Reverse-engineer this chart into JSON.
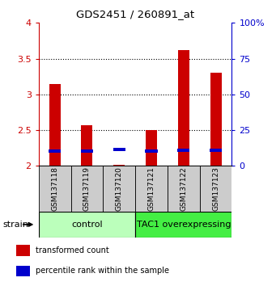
{
  "title": "GDS2451 / 260891_at",
  "samples": [
    "GSM137118",
    "GSM137119",
    "GSM137120",
    "GSM137121",
    "GSM137122",
    "GSM137123"
  ],
  "transformed_counts": [
    3.15,
    2.57,
    2.02,
    2.5,
    3.62,
    3.3
  ],
  "percentile_ranks": [
    10.5,
    10.5,
    11.5,
    10.5,
    11.0,
    11.0
  ],
  "bar_base": 2.0,
  "ylim": [
    2.0,
    4.0
  ],
  "yticks_left": [
    2.0,
    2.5,
    3.0,
    3.5,
    4.0
  ],
  "ytick_labels_left": [
    "2",
    "2.5",
    "3",
    "3.5",
    "4"
  ],
  "ytick_labels_right": [
    "0",
    "25",
    "50",
    "75",
    "100%"
  ],
  "groups": [
    {
      "label": "control",
      "samples": [
        0,
        1,
        2
      ],
      "color": "#bbffbb"
    },
    {
      "label": "TAC1 overexpressing",
      "samples": [
        3,
        4,
        5
      ],
      "color": "#44ee44"
    }
  ],
  "red_color": "#cc0000",
  "blue_color": "#0000cc",
  "bar_width": 0.35,
  "bg_color": "#ffffff",
  "tick_box_color": "#cccccc",
  "strain_label": "strain",
  "legend_items": [
    {
      "color": "#cc0000",
      "label": "transformed count"
    },
    {
      "color": "#0000cc",
      "label": "percentile rank within the sample"
    }
  ]
}
